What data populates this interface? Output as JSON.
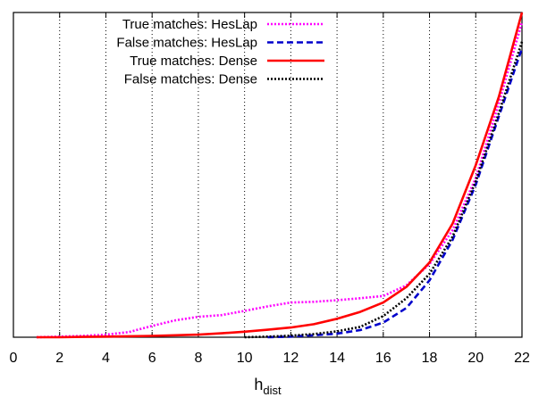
{
  "chart_data": {
    "type": "line",
    "title": "",
    "xlabel": "h",
    "xlabel_sub": "dist",
    "ylabel": "",
    "xlim": [
      0,
      22
    ],
    "ylim": [
      0,
      1
    ],
    "xticks": [
      0,
      2,
      4,
      6,
      8,
      10,
      12,
      14,
      16,
      18,
      20,
      22
    ],
    "y_tick_labels": false,
    "grid": "vertical dotted",
    "legend_position": "top-left",
    "series": [
      {
        "name": "True matches: HesLap",
        "color": "#ff00ff",
        "dash": "dotted",
        "x": [
          1,
          2,
          3,
          4,
          5,
          6,
          7,
          8,
          9,
          10,
          11,
          12,
          13,
          14,
          15,
          16,
          17,
          18,
          19,
          20,
          21,
          22
        ],
        "y": [
          0.0,
          0.002,
          0.004,
          0.008,
          0.016,
          0.035,
          0.052,
          0.063,
          0.068,
          0.081,
          0.095,
          0.107,
          0.109,
          0.114,
          0.12,
          0.127,
          0.16,
          0.225,
          0.33,
          0.49,
          0.72,
          0.97
        ]
      },
      {
        "name": "False matches: HesLap",
        "color": "#0000cc",
        "dash": "dashed",
        "x": [
          11,
          12,
          13,
          14,
          15,
          16,
          17,
          18,
          19,
          20,
          21,
          22
        ],
        "y": [
          0.0,
          0.002,
          0.006,
          0.011,
          0.022,
          0.045,
          0.09,
          0.175,
          0.3,
          0.47,
          0.68,
          0.89
        ]
      },
      {
        "name": "True matches: Dense",
        "color": "#ff0000",
        "dash": "solid",
        "x": [
          1,
          2,
          3,
          4,
          5,
          6,
          7,
          8,
          9,
          10,
          11,
          12,
          13,
          14,
          15,
          16,
          17,
          18,
          19,
          20,
          21,
          22
        ],
        "y": [
          0.0,
          0.0,
          0.001,
          0.002,
          0.003,
          0.004,
          0.006,
          0.008,
          0.012,
          0.017,
          0.023,
          0.03,
          0.04,
          0.057,
          0.078,
          0.107,
          0.155,
          0.23,
          0.35,
          0.53,
          0.74,
          1.0
        ]
      },
      {
        "name": "False matches: Dense",
        "color": "#000000",
        "dash": "dotted",
        "x": [
          10,
          11,
          12,
          13,
          14,
          15,
          16,
          17,
          18,
          19,
          20,
          21,
          22
        ],
        "y": [
          0.0,
          0.002,
          0.005,
          0.01,
          0.018,
          0.032,
          0.065,
          0.12,
          0.195,
          0.31,
          0.48,
          0.69,
          0.91
        ]
      }
    ]
  }
}
